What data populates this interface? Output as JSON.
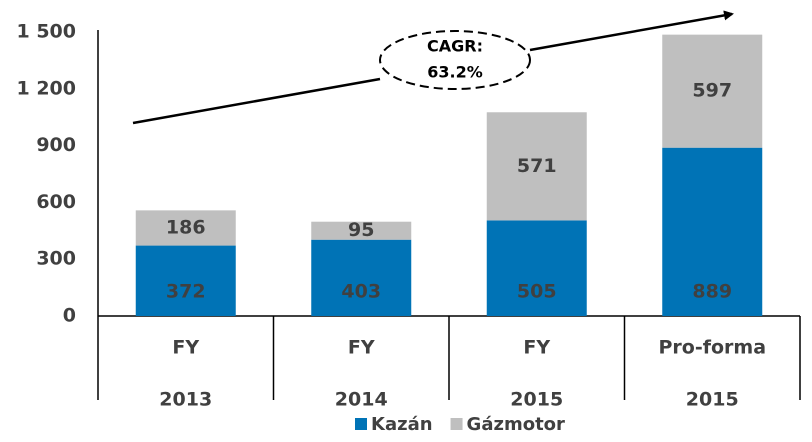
{
  "chart_data": {
    "type": "stacked_bar",
    "categories": [
      [
        "FY",
        "2013"
      ],
      [
        "FY",
        "2014"
      ],
      [
        "FY",
        "2015"
      ],
      [
        "Pro-forma",
        "2015"
      ]
    ],
    "series": [
      {
        "name": "Kazán",
        "color": "#0073b6",
        "values": [
          372,
          403,
          505,
          889
        ]
      },
      {
        "name": "Gázmotor",
        "color": "#bfbfbf",
        "values": [
          186,
          95,
          571,
          597
        ]
      }
    ],
    "ylim": [
      0,
      1500
    ],
    "yticks": [
      0,
      300,
      600,
      900,
      {
        "value": 1200,
        "label": "1 200"
      },
      {
        "value": 1500,
        "label": "1 500"
      }
    ],
    "annotation": [
      "CAGR:",
      "63.2%"
    ],
    "grid": false,
    "legend": "bottom"
  }
}
